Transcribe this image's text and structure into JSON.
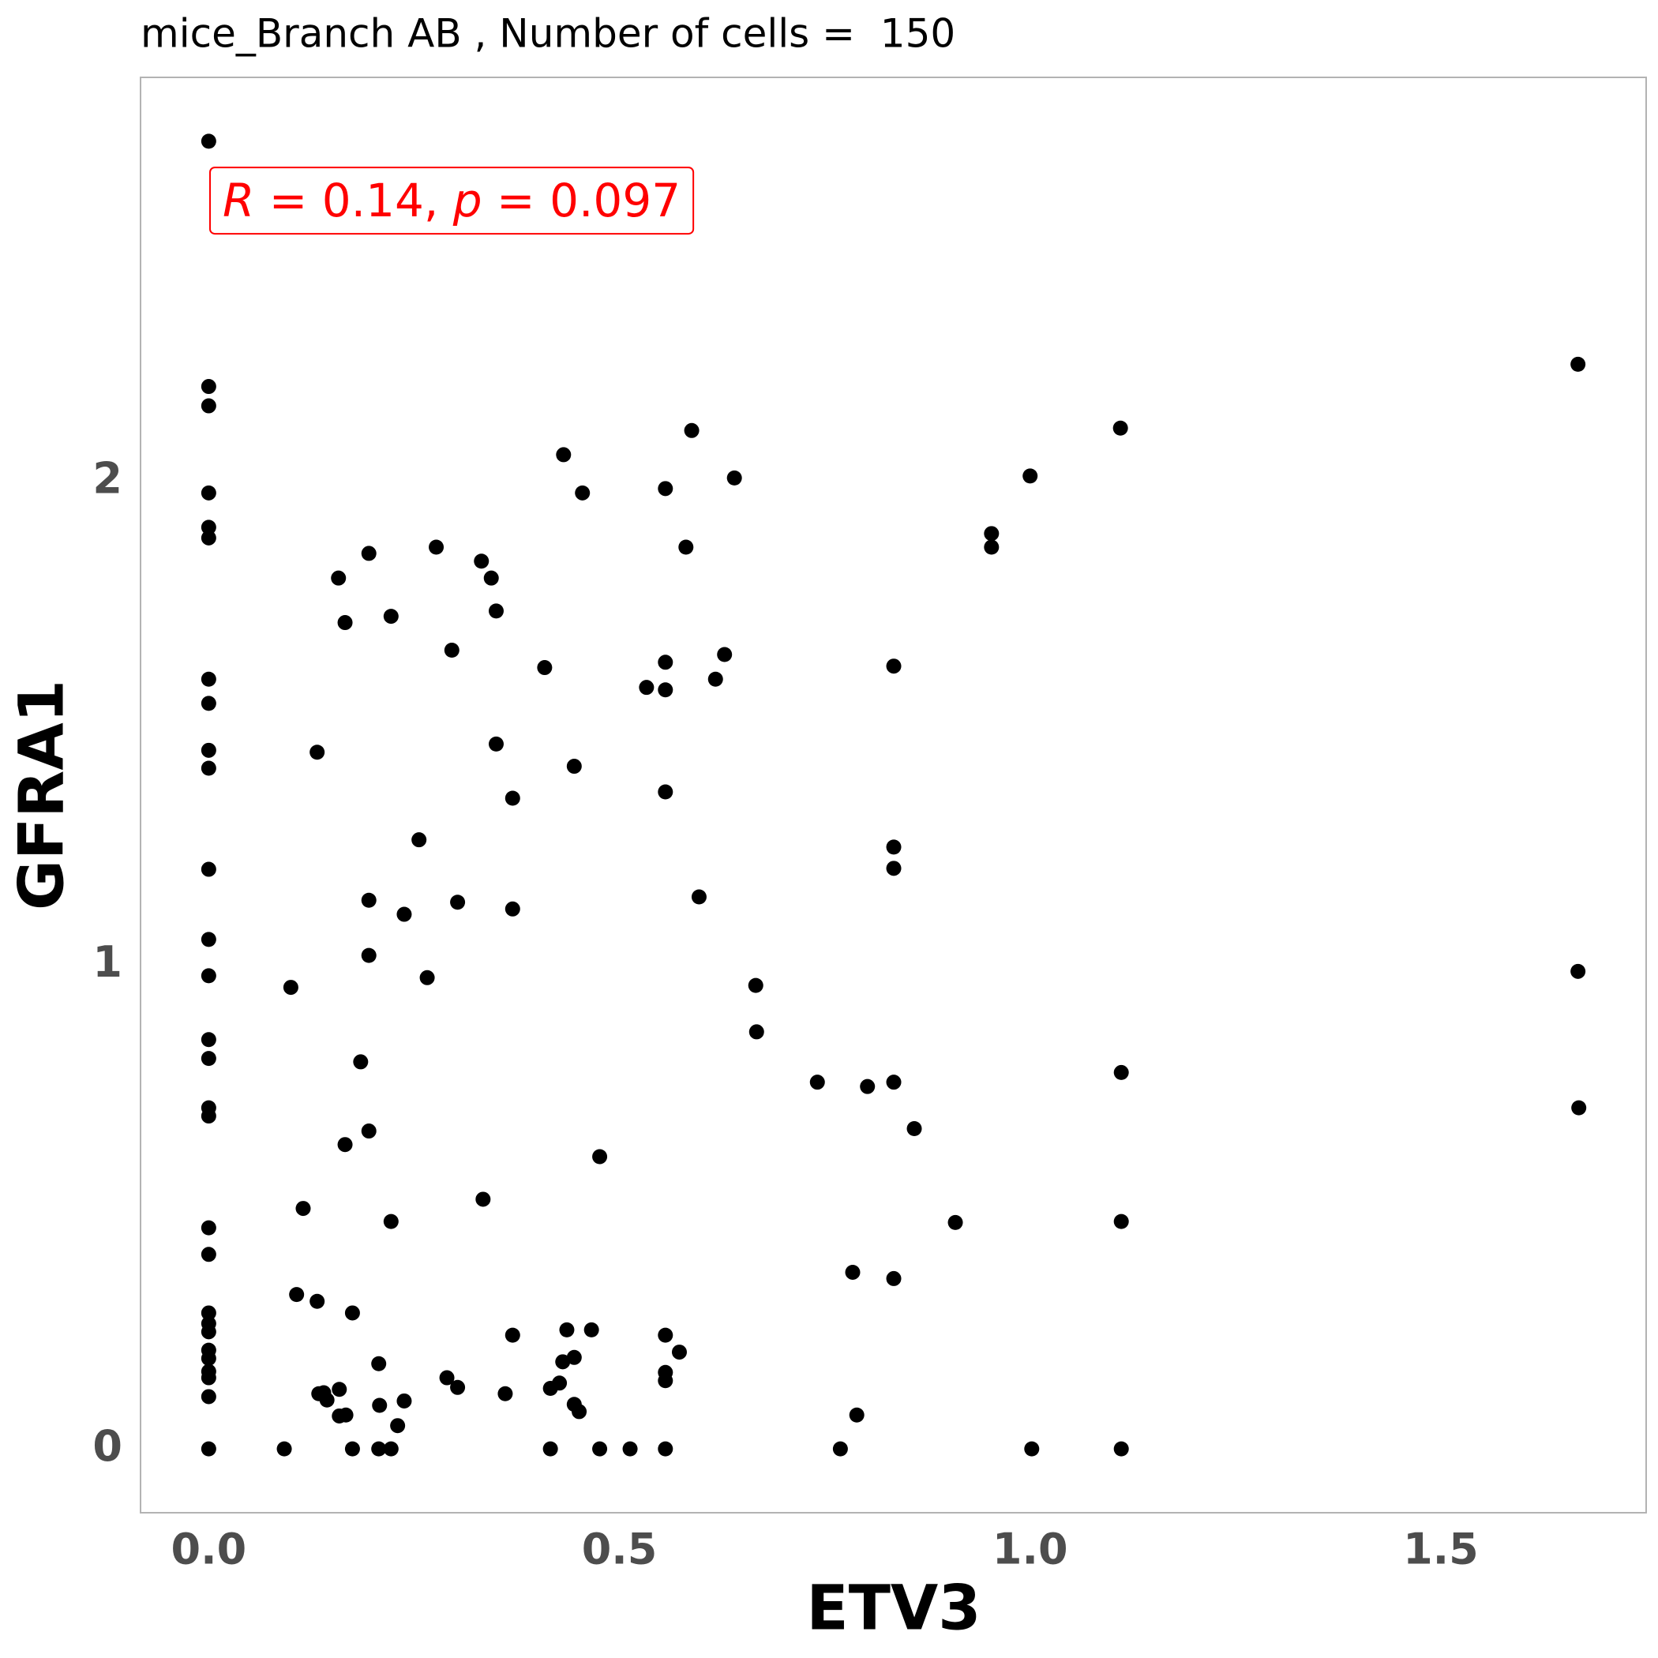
{
  "chart_data": {
    "type": "scatter",
    "title": "mice_Branch AB , Number of cells =  150",
    "annotation": [
      "R",
      " = 0.14, ",
      "p",
      " = 0.097"
    ],
    "xlabel": "ETV3",
    "ylabel": "GFRA1",
    "color": "#000000",
    "xlim": [
      -0.083,
      1.75
    ],
    "ylim": [
      -0.132,
      2.835
    ],
    "xticks": [
      {
        "value": 0,
        "label": "0.0"
      },
      0.5,
      {
        "value": 1,
        "label": "1.0"
      },
      1.5
    ],
    "yticks": [
      0,
      1,
      2
    ],
    "grid": false,
    "x": [
      0,
      0,
      0,
      0,
      0,
      0,
      0,
      0,
      0,
      0,
      0,
      0,
      0,
      0,
      0,
      0,
      0,
      0,
      0,
      0,
      0,
      0,
      0,
      0,
      0,
      0,
      0,
      0,
      0.092,
      0.1,
      0.107,
      0.115,
      0.132,
      0.132,
      0.134,
      0.14,
      0.144,
      0.158,
      0.159,
      0.159,
      0.166,
      0.167,
      0.166,
      0.175,
      0.175,
      0.185,
      0.195,
      0.195,
      0.195,
      0.195,
      0.207,
      0.208,
      0.207,
      0.222,
      0.222,
      0.222,
      0.23,
      0.238,
      0.238,
      0.256,
      0.266,
      0.277,
      0.29,
      0.296,
      0.303,
      0.303,
      0.332,
      0.334,
      0.344,
      0.35,
      0.35,
      0.361,
      0.37,
      0.37,
      0.37,
      0.409,
      0.416,
      0.416,
      0.427,
      0.431,
      0.432,
      0.436,
      0.445,
      0.445,
      0.445,
      0.451,
      0.455,
      0.466,
      0.476,
      0.476,
      0.513,
      0.533,
      0.556,
      0.556,
      0.556,
      0.556,
      0.556,
      0.556,
      0.556,
      0.556,
      0.573,
      0.581,
      0.588,
      0.597,
      0.617,
      0.628,
      0.64,
      0.666,
      0.667,
      0.741,
      0.769,
      0.784,
      0.789,
      0.802,
      0.834,
      0.834,
      0.834,
      0.834,
      0.834,
      0.859,
      0.909,
      0.953,
      0.953,
      1.0,
      1.002,
      1.11,
      1.111,
      1.111,
      1.111,
      1.667,
      1.667,
      1.668
    ],
    "values": [
      2.703,
      2.196,
      2.156,
      1.976,
      1.905,
      1.883,
      1.591,
      1.541,
      1.444,
      1.407,
      1.198,
      1.053,
      0.978,
      0.846,
      0.807,
      0.705,
      0.688,
      0.457,
      0.402,
      0.281,
      0.259,
      0.242,
      0.204,
      0.187,
      0.16,
      0.147,
      0.108,
      0,
      0,
      0.954,
      0.319,
      0.497,
      1.44,
      0.305,
      0.114,
      0.116,
      0.101,
      1.8,
      0.123,
      0.068,
      1.708,
      0.07,
      0.629,
      0,
      0.281,
      0.8,
      1.851,
      1.134,
      1.02,
      0.657,
      0.176,
      0.09,
      0,
      1.721,
      0.47,
      0,
      0.048,
      1.105,
      0.099,
      1.259,
      0.974,
      1.864,
      0.147,
      1.651,
      1.13,
      0.127,
      1.835,
      0.516,
      1.8,
      1.732,
      1.457,
      0.114,
      1.345,
      1.116,
      0.235,
      1.615,
      0.125,
      0,
      0.136,
      0.18,
      2.055,
      0.246,
      1.411,
      0.189,
      0.092,
      0.077,
      1.976,
      0.246,
      0.604,
      0,
      0,
      1.574,
      1.985,
      1.626,
      1.569,
      1.358,
      0.235,
      0.158,
      0.141,
      0,
      0.2,
      1.864,
      2.105,
      1.141,
      1.591,
      1.642,
      2.007,
      0.958,
      0.862,
      0.758,
      0,
      0.365,
      0.07,
      0.749,
      1.618,
      1.244,
      1.2,
      0.758,
      0.352,
      0.662,
      0.468,
      1.892,
      1.864,
      2.011,
      0,
      2.11,
      0.778,
      0.47,
      0,
      2.242,
      0.987,
      0.705
    ]
  }
}
